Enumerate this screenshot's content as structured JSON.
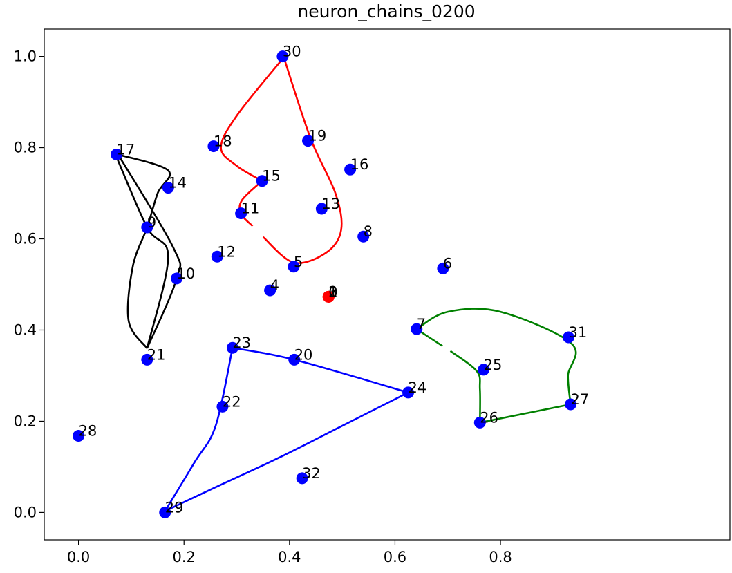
{
  "chart_data": {
    "type": "scatter",
    "title": "neuron_chains_0200",
    "xlabel": "",
    "ylabel": "",
    "xlim": [
      -0.065,
      1.235
    ],
    "ylim": [
      -0.06,
      1.06
    ],
    "x_ticks": [
      0.0,
      0.2,
      0.4,
      0.6,
      0.8
    ],
    "x_tick_labels": [
      "0.0",
      "0.2",
      "0.4",
      "0.6",
      "0.8"
    ],
    "y_ticks": [
      0.0,
      0.2,
      0.4,
      0.6,
      0.8,
      1.0
    ],
    "y_tick_labels": [
      "0.0",
      "0.2",
      "0.4",
      "0.6",
      "0.8",
      "1.0"
    ],
    "grid": false,
    "colors": {
      "points": "#0000ff",
      "highlight": "#ff0000",
      "chain_red": "#ff0000",
      "chain_black": "#000000",
      "chain_blue": "#0000ff",
      "chain_green": "#008000"
    },
    "points": [
      {
        "label": "0",
        "x": 0.474,
        "y": 0.473,
        "highlight": true
      },
      {
        "label": "1",
        "x": 0.474,
        "y": 0.473,
        "highlight": true
      },
      {
        "label": "2",
        "x": 0.474,
        "y": 0.473,
        "highlight": true
      },
      {
        "label": "3",
        "x": 0.474,
        "y": 0.473,
        "highlight": true
      },
      {
        "label": "4",
        "x": 0.363,
        "y": 0.487
      },
      {
        "label": "5",
        "x": 0.408,
        "y": 0.539
      },
      {
        "label": "6",
        "x": 0.691,
        "y": 0.535
      },
      {
        "label": "7",
        "x": 0.641,
        "y": 0.402
      },
      {
        "label": "8",
        "x": 0.54,
        "y": 0.605
      },
      {
        "label": "9",
        "x": 0.13,
        "y": 0.625
      },
      {
        "label": "10",
        "x": 0.186,
        "y": 0.513
      },
      {
        "label": "11",
        "x": 0.308,
        "y": 0.656
      },
      {
        "label": "12",
        "x": 0.263,
        "y": 0.561
      },
      {
        "label": "13",
        "x": 0.461,
        "y": 0.666
      },
      {
        "label": "14",
        "x": 0.17,
        "y": 0.712
      },
      {
        "label": "15",
        "x": 0.348,
        "y": 0.727
      },
      {
        "label": "16",
        "x": 0.515,
        "y": 0.752
      },
      {
        "label": "17",
        "x": 0.072,
        "y": 0.785
      },
      {
        "label": "18",
        "x": 0.256,
        "y": 0.803
      },
      {
        "label": "19",
        "x": 0.435,
        "y": 0.815
      },
      {
        "label": "20",
        "x": 0.409,
        "y": 0.335
      },
      {
        "label": "21",
        "x": 0.13,
        "y": 0.335
      },
      {
        "label": "22",
        "x": 0.273,
        "y": 0.232
      },
      {
        "label": "23",
        "x": 0.292,
        "y": 0.361
      },
      {
        "label": "24",
        "x": 0.625,
        "y": 0.263
      },
      {
        "label": "25",
        "x": 0.768,
        "y": 0.313
      },
      {
        "label": "26",
        "x": 0.761,
        "y": 0.197
      },
      {
        "label": "27",
        "x": 0.933,
        "y": 0.237
      },
      {
        "label": "28",
        "x": 0.0,
        "y": 0.168
      },
      {
        "label": "29",
        "x": 0.164,
        "y": 0.0
      },
      {
        "label": "30",
        "x": 0.387,
        "y": 1.0
      },
      {
        "label": "31",
        "x": 0.929,
        "y": 0.384
      },
      {
        "label": "32",
        "x": 0.424,
        "y": 0.075
      }
    ],
    "chains": [
      {
        "color": "#ff0000",
        "segments": [
          [
            [
              0.387,
              0.995
            ],
            [
              0.3,
              0.87
            ],
            [
              0.27,
              0.8
            ],
            [
              0.3,
              0.76
            ],
            [
              0.348,
              0.727
            ]
          ],
          [
            [
              0.348,
              0.727
            ],
            [
              0.31,
              0.685
            ],
            [
              0.308,
              0.655
            ],
            [
              0.33,
              0.628
            ]
          ],
          [
            [
              0.35,
              0.604
            ],
            [
              0.408,
              0.548
            ],
            [
              0.47,
              0.57
            ],
            [
              0.498,
              0.62
            ],
            [
              0.487,
              0.7
            ],
            [
              0.44,
              0.82
            ],
            [
              0.39,
              0.995
            ]
          ]
        ]
      },
      {
        "color": "#000000",
        "segments": [
          [
            [
              0.07,
              0.785
            ],
            [
              0.13,
              0.625
            ],
            [
              0.17,
              0.56
            ],
            [
              0.13,
              0.36
            ]
          ],
          [
            [
              0.13,
              0.36
            ],
            [
              0.095,
              0.42
            ],
            [
              0.103,
              0.54
            ],
            [
              0.13,
              0.625
            ],
            [
              0.15,
              0.7
            ],
            [
              0.17,
              0.75
            ],
            [
              0.075,
              0.785
            ]
          ],
          [
            [
              0.13,
              0.36
            ],
            [
              0.186,
              0.513
            ],
            [
              0.18,
              0.58
            ],
            [
              0.075,
              0.785
            ]
          ]
        ]
      },
      {
        "color": "#0000ff",
        "segments": [
          [
            [
              0.292,
              0.361
            ],
            [
              0.409,
              0.335
            ],
            [
              0.625,
              0.263
            ]
          ],
          [
            [
              0.625,
              0.263
            ],
            [
              0.5,
              0.19
            ],
            [
              0.38,
              0.12
            ],
            [
              0.25,
              0.05
            ],
            [
              0.164,
              0.003
            ]
          ],
          [
            [
              0.164,
              0.003
            ],
            [
              0.22,
              0.11
            ],
            [
              0.26,
              0.19
            ],
            [
              0.292,
              0.361
            ]
          ]
        ]
      },
      {
        "color": "#008000",
        "segments": [
          [
            [
              0.641,
              0.402
            ],
            [
              0.69,
              0.365
            ]
          ],
          [
            [
              0.705,
              0.354
            ],
            [
              0.755,
              0.31
            ],
            [
              0.761,
              0.27
            ],
            [
              0.761,
              0.197
            ]
          ],
          [
            [
              0.761,
              0.197
            ],
            [
              0.933,
              0.237
            ]
          ],
          [
            [
              0.933,
              0.237
            ],
            [
              0.928,
              0.3
            ],
            [
              0.935,
              0.37
            ],
            [
              0.8,
              0.44
            ],
            [
              0.7,
              0.44
            ],
            [
              0.641,
              0.402
            ]
          ]
        ]
      }
    ]
  }
}
